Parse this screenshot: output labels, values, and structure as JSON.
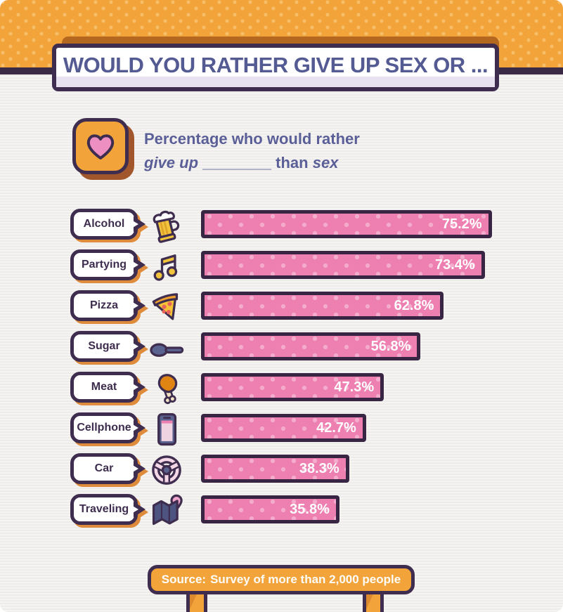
{
  "title": "WOULD YOU RATHER GIVE UP SEX OR ...",
  "subtitle": {
    "line1": "Percentage who would rather",
    "line2_giveup": "give up",
    "line2_blank": "________",
    "line2_than": " than ",
    "line2_sex": "sex",
    "icon": "heart-icon"
  },
  "source": {
    "prefix": "Source:",
    "text": "Survey of more than 2,000 people"
  },
  "colors": {
    "header_orange": "#F2A43B",
    "header_dot": "#F7BE69",
    "border_purple": "#3E2D4F",
    "title_text": "#545B93",
    "subtitle_text": "#5B5F97",
    "bar_pink": "#EE7FB1",
    "bar_dot": "#F5A8CB",
    "bubble_shadow_orange": "#DE8B3C",
    "background": "#F1F0EE"
  },
  "chart_data": {
    "type": "bar",
    "orientation": "horizontal",
    "unit": "%",
    "xlim": [
      0,
      100
    ],
    "title": "Percentage who would rather give up ________ than sex",
    "categories": [
      "Alcohol",
      "Partying",
      "Pizza",
      "Sugar",
      "Meat",
      "Cellphone",
      "Car",
      "Traveling"
    ],
    "values": [
      75.2,
      73.4,
      62.8,
      56.8,
      47.3,
      42.7,
      38.3,
      35.8
    ],
    "rows": [
      {
        "label": "Alcohol",
        "icon": "beer-icon",
        "value": 75.2,
        "value_label": "75.2%"
      },
      {
        "label": "Partying",
        "icon": "music-notes-icon",
        "value": 73.4,
        "value_label": "73.4%"
      },
      {
        "label": "Pizza",
        "icon": "pizza-icon",
        "value": 62.8,
        "value_label": "62.8%"
      },
      {
        "label": "Sugar",
        "icon": "sugar-spoon-icon",
        "value": 56.8,
        "value_label": "56.8%"
      },
      {
        "label": "Meat",
        "icon": "drumstick-icon",
        "value": 47.3,
        "value_label": "47.3%"
      },
      {
        "label": "Cellphone",
        "icon": "cellphone-icon",
        "value": 42.7,
        "value_label": "42.7%"
      },
      {
        "label": "Car",
        "icon": "steering-wheel-icon",
        "value": 38.3,
        "value_label": "38.3%"
      },
      {
        "label": "Traveling",
        "icon": "map-icon",
        "value": 35.8,
        "value_label": "35.8%"
      }
    ]
  }
}
